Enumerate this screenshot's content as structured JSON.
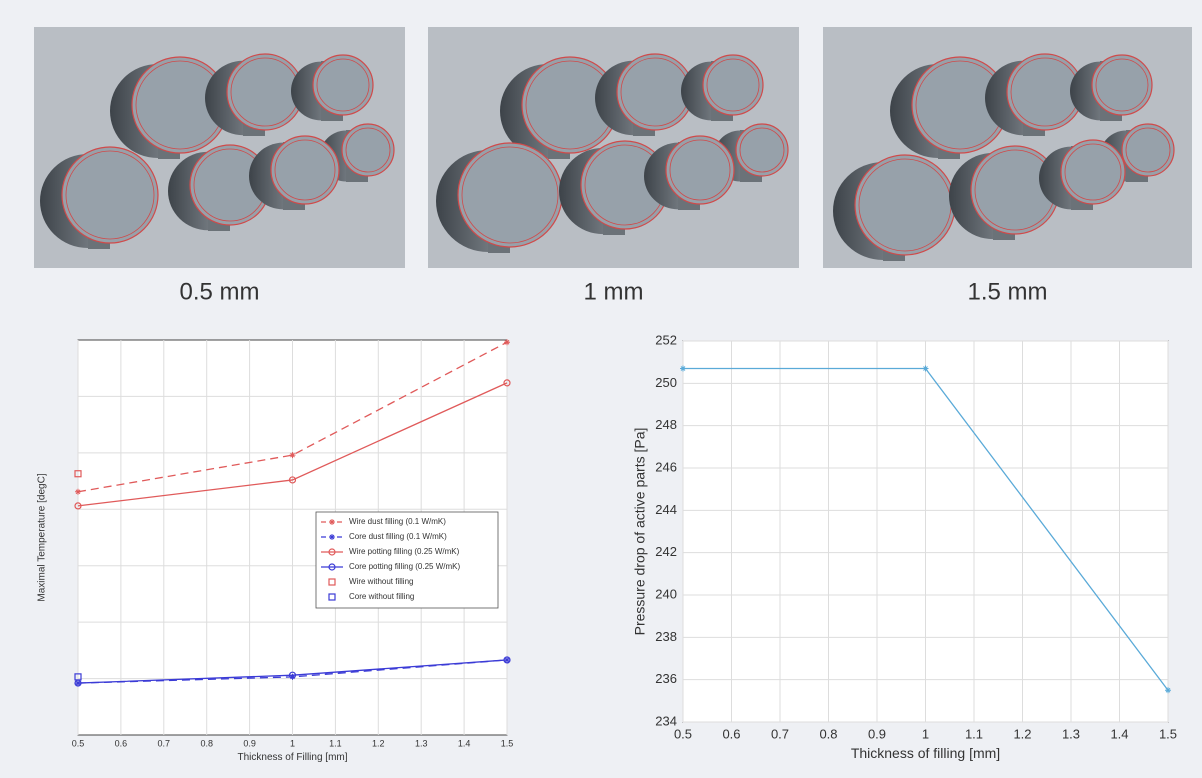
{
  "renders": [
    {
      "caption": "0.5 mm"
    },
    {
      "caption": "1 mm"
    },
    {
      "caption": "1.5 mm"
    }
  ],
  "chart_data": [
    {
      "type": "line",
      "x_label": "Thickness of Filling [mm]",
      "y_label": "Maximal Temperature [degC]",
      "x": [
        0.5,
        1,
        1.5
      ],
      "xlim": [
        0.5,
        1.5
      ],
      "xticks": [
        0.5,
        0.6,
        0.7,
        0.8,
        0.9,
        1,
        1.1,
        1.2,
        1.3,
        1.4,
        1.5
      ],
      "ylim": [
        0,
        7
      ],
      "grid": true,
      "legend": "center-right",
      "series": [
        {
          "name": "Wire dust filling (0.1 W/mK)",
          "color": "#e05a5a",
          "style": "dashed",
          "marker": "star",
          "values": [
            4.31,
            4.96,
            6.96
          ]
        },
        {
          "name": "Core dust filling (0.1 W/mK)",
          "color": "#3b3bd6",
          "style": "dashed",
          "marker": "star",
          "values": [
            0.92,
            1.03,
            1.33
          ]
        },
        {
          "name": "Wire potting filling (0.25 W/mK)",
          "color": "#e05a5a",
          "style": "solid",
          "marker": "circle",
          "values": [
            4.06,
            4.52,
            6.24
          ]
        },
        {
          "name": "Core potting filling (0.25 W/mK)",
          "color": "#3b3bd6",
          "style": "solid",
          "marker": "circle",
          "values": [
            0.92,
            1.06,
            1.33
          ]
        },
        {
          "name": "Wire without filling",
          "color": "#e05a5a",
          "style": "none",
          "marker": "square",
          "values": [
            4.63,
            null,
            null
          ]
        },
        {
          "name": "Core without filling",
          "color": "#3b3bd6",
          "style": "none",
          "marker": "square",
          "values": [
            1.03,
            null,
            null
          ]
        }
      ]
    },
    {
      "type": "line",
      "x_label": "Thickness of filling [mm]",
      "y_label": "Pressure drop of active parts [Pa]",
      "x": [
        0.5,
        1,
        1.5
      ],
      "xlim": [
        0.5,
        1.5
      ],
      "xticks": [
        0.5,
        0.6,
        0.7,
        0.8,
        0.9,
        1,
        1.1,
        1.2,
        1.3,
        1.4,
        1.5
      ],
      "ylim": [
        234,
        252
      ],
      "yticks": [
        234,
        236,
        238,
        240,
        242,
        244,
        246,
        248,
        250,
        252
      ],
      "grid": true,
      "series": [
        {
          "color": "#5aaad8",
          "style": "solid",
          "marker": "star",
          "values": [
            250.7,
            250.7,
            235.5
          ]
        }
      ]
    }
  ]
}
